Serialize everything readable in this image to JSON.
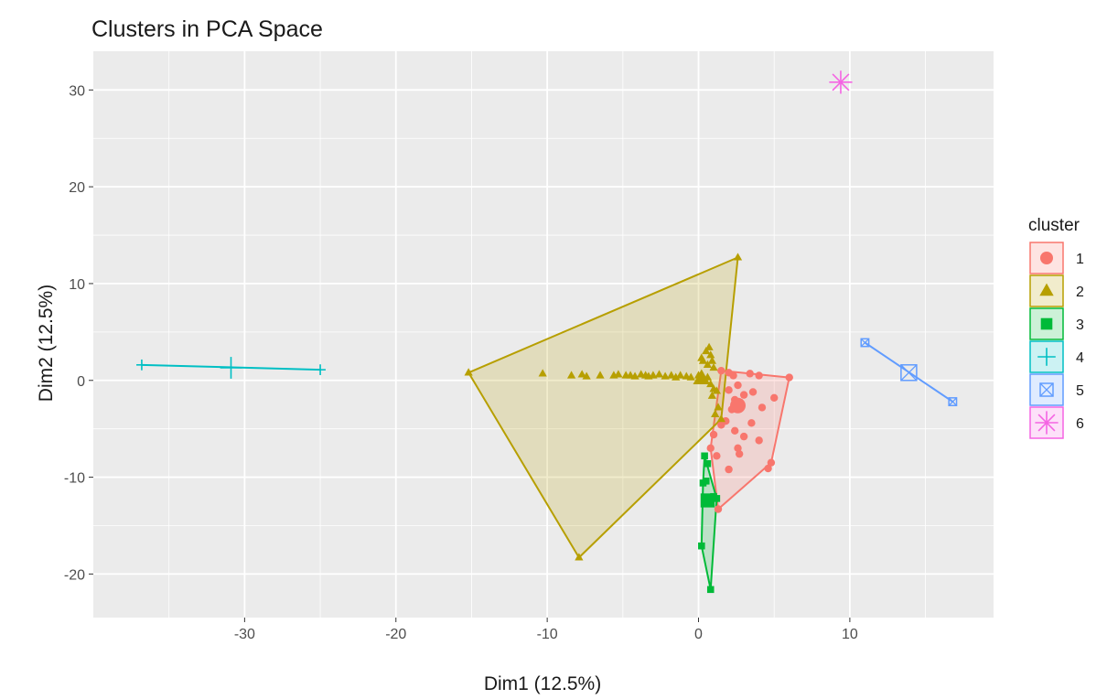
{
  "chart_data": {
    "type": "scatter",
    "title": "Clusters in PCA Space",
    "xlabel": "Dim1 (12.5%)",
    "ylabel": "Dim2 (12.5%)",
    "xlim": [
      -40,
      19.5
    ],
    "ylim": [
      -24.5,
      34
    ],
    "x_ticks": [
      -30,
      -20,
      -10,
      0,
      10
    ],
    "y_ticks": [
      -20,
      -10,
      0,
      10,
      20,
      30
    ],
    "grid": true,
    "legend": {
      "title": "cluster",
      "position": "right"
    },
    "series": [
      {
        "name": "1",
        "color": "#F8766D",
        "shape": "circle",
        "hull": [
          [
            1.5,
            1.0
          ],
          [
            6.0,
            0.3
          ],
          [
            4.8,
            -8.5
          ],
          [
            1.3,
            -13.3
          ],
          [
            0.8,
            -7.0
          ]
        ],
        "points": [
          [
            1.5,
            1.0
          ],
          [
            2.0,
            0.8
          ],
          [
            2.3,
            0.5
          ],
          [
            3.4,
            0.7
          ],
          [
            4.0,
            0.5
          ],
          [
            6.0,
            0.3
          ],
          [
            2.6,
            -0.5
          ],
          [
            2.0,
            -1.0
          ],
          [
            3.0,
            -1.5
          ],
          [
            2.4,
            -2.0
          ],
          [
            3.6,
            -1.2
          ],
          [
            2.8,
            -2.6
          ],
          [
            4.2,
            -2.8
          ],
          [
            5.0,
            -1.8
          ],
          [
            2.2,
            -3.0
          ],
          [
            1.8,
            -4.2
          ],
          [
            1.5,
            -4.6
          ],
          [
            3.5,
            -4.4
          ],
          [
            2.4,
            -5.2
          ],
          [
            1.0,
            -5.6
          ],
          [
            3.0,
            -5.8
          ],
          [
            4.0,
            -6.2
          ],
          [
            0.8,
            -7.0
          ],
          [
            2.6,
            -7.0
          ],
          [
            1.2,
            -7.8
          ],
          [
            2.7,
            -7.6
          ],
          [
            4.8,
            -8.5
          ],
          [
            4.6,
            -9.1
          ],
          [
            2.0,
            -9.2
          ],
          [
            1.3,
            -13.3
          ]
        ],
        "center": [
          2.6,
          -2.6
        ]
      },
      {
        "name": "2",
        "color": "#B79F00",
        "shape": "triangle",
        "hull": [
          [
            -15.2,
            0.8
          ],
          [
            2.6,
            12.7
          ],
          [
            1.5,
            -4.0
          ],
          [
            -7.9,
            -18.3
          ]
        ],
        "points": [
          [
            -15.2,
            0.8
          ],
          [
            -10.3,
            0.7
          ],
          [
            -8.4,
            0.5
          ],
          [
            -7.7,
            0.6
          ],
          [
            -7.4,
            0.4
          ],
          [
            -6.5,
            0.5
          ],
          [
            -5.6,
            0.5
          ],
          [
            -5.3,
            0.6
          ],
          [
            -4.8,
            0.5
          ],
          [
            -4.5,
            0.5
          ],
          [
            -4.2,
            0.4
          ],
          [
            -3.8,
            0.6
          ],
          [
            -3.5,
            0.5
          ],
          [
            -3.3,
            0.4
          ],
          [
            -3.0,
            0.5
          ],
          [
            -2.6,
            0.6
          ],
          [
            -2.2,
            0.4
          ],
          [
            -1.8,
            0.5
          ],
          [
            -1.5,
            0.3
          ],
          [
            -1.2,
            0.5
          ],
          [
            -0.8,
            0.4
          ],
          [
            -0.5,
            0.3
          ],
          [
            0.0,
            0.5
          ],
          [
            0.2,
            0.0
          ],
          [
            0.6,
            0.3
          ],
          [
            0.8,
            -0.4
          ],
          [
            1.0,
            -0.9
          ],
          [
            1.2,
            -1.1
          ],
          [
            0.9,
            -1.6
          ],
          [
            1.3,
            -2.8
          ],
          [
            1.1,
            -3.5
          ],
          [
            1.5,
            -4.0
          ],
          [
            0.5,
            3.0
          ],
          [
            0.8,
            2.6
          ],
          [
            0.3,
            2.0
          ],
          [
            0.6,
            1.6
          ],
          [
            1.0,
            1.3
          ],
          [
            0.7,
            3.4
          ],
          [
            0.2,
            2.3
          ],
          [
            0.9,
            2.0
          ],
          [
            2.6,
            12.7
          ],
          [
            -7.9,
            -18.3
          ]
        ],
        "center": [
          0.2,
          0.2
        ]
      },
      {
        "name": "3",
        "color": "#00BA38",
        "shape": "square",
        "hull": [
          [
            0.4,
            -7.8
          ],
          [
            1.2,
            -12.2
          ],
          [
            0.8,
            -21.6
          ],
          [
            0.2,
            -17.1
          ],
          [
            0.3,
            -10.6
          ]
        ],
        "points": [
          [
            0.4,
            -7.8
          ],
          [
            0.6,
            -8.6
          ],
          [
            0.3,
            -10.6
          ],
          [
            0.5,
            -10.4
          ],
          [
            1.0,
            -12.0
          ],
          [
            1.2,
            -12.2
          ],
          [
            0.2,
            -17.1
          ],
          [
            0.8,
            -21.6
          ]
        ],
        "center": [
          0.6,
          -12.4
        ]
      },
      {
        "name": "4",
        "color": "#00BFC4",
        "shape": "plus",
        "hull": [
          [
            -36.8,
            1.6
          ],
          [
            -25.0,
            1.1
          ]
        ],
        "points": [
          [
            -36.8,
            1.6
          ],
          [
            -25.0,
            1.1
          ]
        ],
        "center": [
          -30.9,
          1.3
        ]
      },
      {
        "name": "5",
        "color": "#619CFF",
        "shape": "square-x",
        "hull": [
          [
            11.0,
            3.9
          ],
          [
            16.8,
            -2.2
          ]
        ],
        "points": [
          [
            11.0,
            3.9
          ],
          [
            16.8,
            -2.2
          ]
        ],
        "center": [
          13.9,
          0.8
        ]
      },
      {
        "name": "6",
        "color": "#F564E3",
        "shape": "asterisk",
        "hull": [],
        "points": [
          [
            9.4,
            30.8
          ]
        ],
        "center": null
      }
    ]
  }
}
